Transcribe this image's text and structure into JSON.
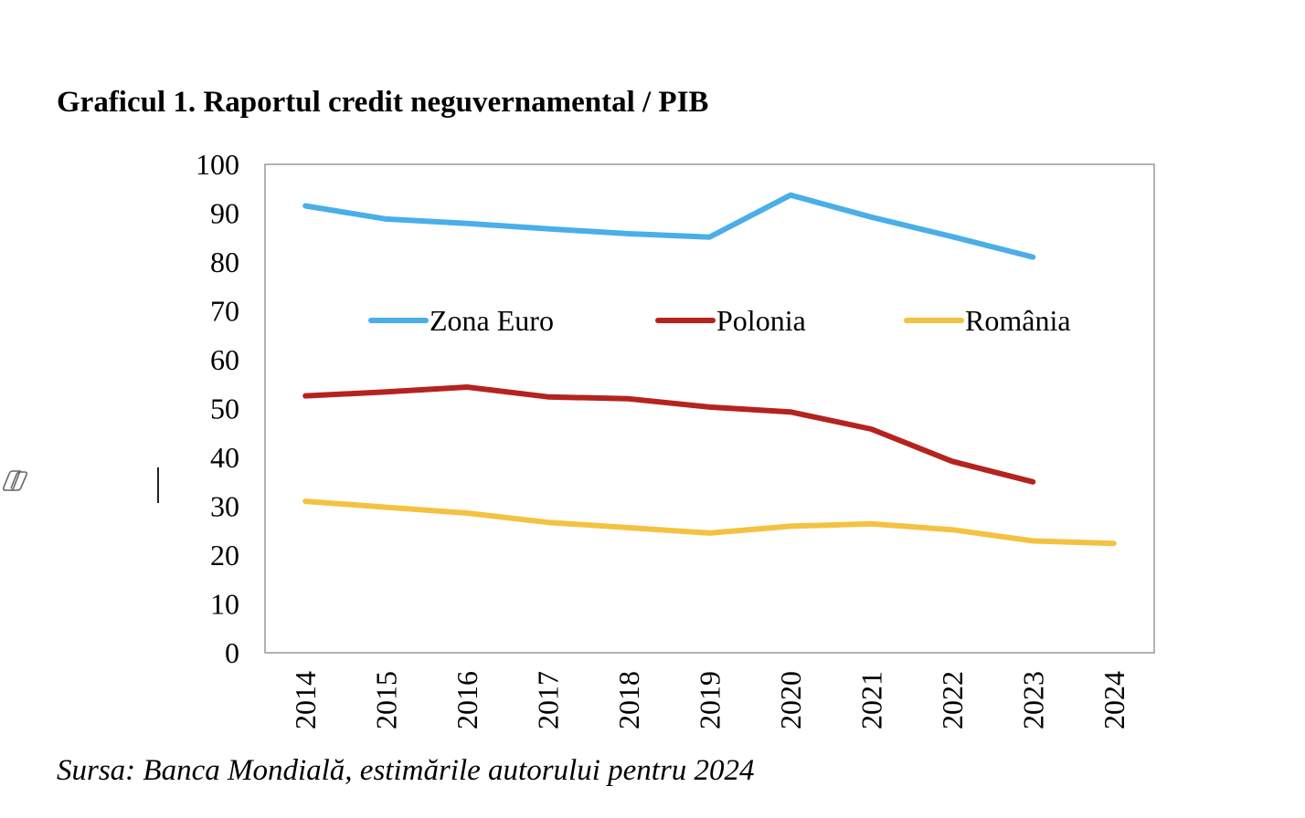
{
  "title": "Graficul 1. Raportul credit neguvernamental / PIB",
  "source": "Sursa: Banca Mondială, estimările autorului pentru 2024",
  "side_icon": "copilot-icon",
  "colors": {
    "zona_euro": "#4AAEE8",
    "polonia": "#B5231F",
    "romania": "#F4C241",
    "axis": "#999999"
  },
  "chart_data": {
    "type": "line",
    "title": "Graficul 1. Raportul credit neguvernamental / PIB",
    "xlabel": "",
    "ylabel": "",
    "ylim": [
      0,
      100
    ],
    "yticks": [
      "0",
      "10",
      "20",
      "30",
      "40",
      "50",
      "60",
      "70",
      "80",
      "90",
      "100"
    ],
    "categories": [
      "2014",
      "2015",
      "2016",
      "2017",
      "2018",
      "2019",
      "2020",
      "2021",
      "2022",
      "2023",
      "2024"
    ],
    "grid": false,
    "legend_position": "inside-top",
    "series": [
      {
        "name": "Zona Euro",
        "color": "#4AAEE8",
        "values": [
          91.5,
          88.8,
          87.9,
          86.8,
          85.8,
          85.1,
          93.7,
          89.2,
          85.2,
          81.0,
          null
        ]
      },
      {
        "name": "Polonia",
        "color": "#B5231F",
        "values": [
          52.6,
          53.4,
          54.4,
          52.4,
          52.0,
          50.3,
          49.3,
          45.8,
          39.2,
          35.0,
          null
        ]
      },
      {
        "name": "România",
        "color": "#F4C241",
        "values": [
          31.0,
          29.8,
          28.6,
          26.7,
          25.6,
          24.5,
          25.9,
          26.4,
          25.2,
          22.9,
          22.4
        ]
      }
    ]
  }
}
